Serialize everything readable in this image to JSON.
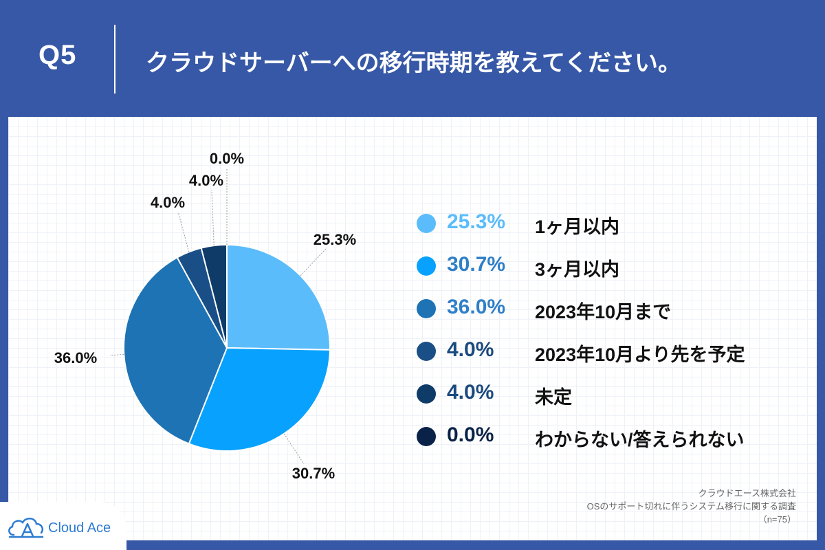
{
  "header": {
    "q_label": "Q5",
    "title": "クラウドサーバーへの移行時期を教えてください。"
  },
  "colors": {
    "frame": "#3658a6",
    "slices": [
      "#5bbcfb",
      "#08a2fe",
      "#1e73b4",
      "#194f86",
      "#0f3b69",
      "#0a2247"
    ]
  },
  "chart_data": {
    "type": "pie",
    "title": "クラウドサーバーへの移行時期を教えてください。",
    "categories": [
      "1ヶ月以内",
      "3ヶ月以内",
      "2023年10月まで",
      "2023年10月より先を予定",
      "未定",
      "わからない/答えられない"
    ],
    "values": [
      25.3,
      30.7,
      36.0,
      4.0,
      4.0,
      0.0
    ],
    "value_labels": [
      "25.3%",
      "30.7%",
      "36.0%",
      "4.0%",
      "4.0%",
      "0.0%"
    ],
    "start_angle": "12 o'clock",
    "direction": "clockwise",
    "legend_position": "right"
  },
  "legend": {
    "items": [
      {
        "pct": "25.3%",
        "label": "1ヶ月以内"
      },
      {
        "pct": "30.7%",
        "label": "3ヶ月以内"
      },
      {
        "pct": "36.0%",
        "label": "2023年10月まで"
      },
      {
        "pct": "4.0%",
        "label": "2023年10月より先を予定"
      },
      {
        "pct": "4.0%",
        "label": "未定"
      },
      {
        "pct": "0.0%",
        "label": "わからない/答えられない"
      }
    ]
  },
  "logo": {
    "text": "Cloud Ace"
  },
  "source": {
    "company": "クラウドエース株式会社",
    "survey": "OSのサポート切れに伴うシステム移行に関する調査",
    "sample": "（n=75）"
  }
}
